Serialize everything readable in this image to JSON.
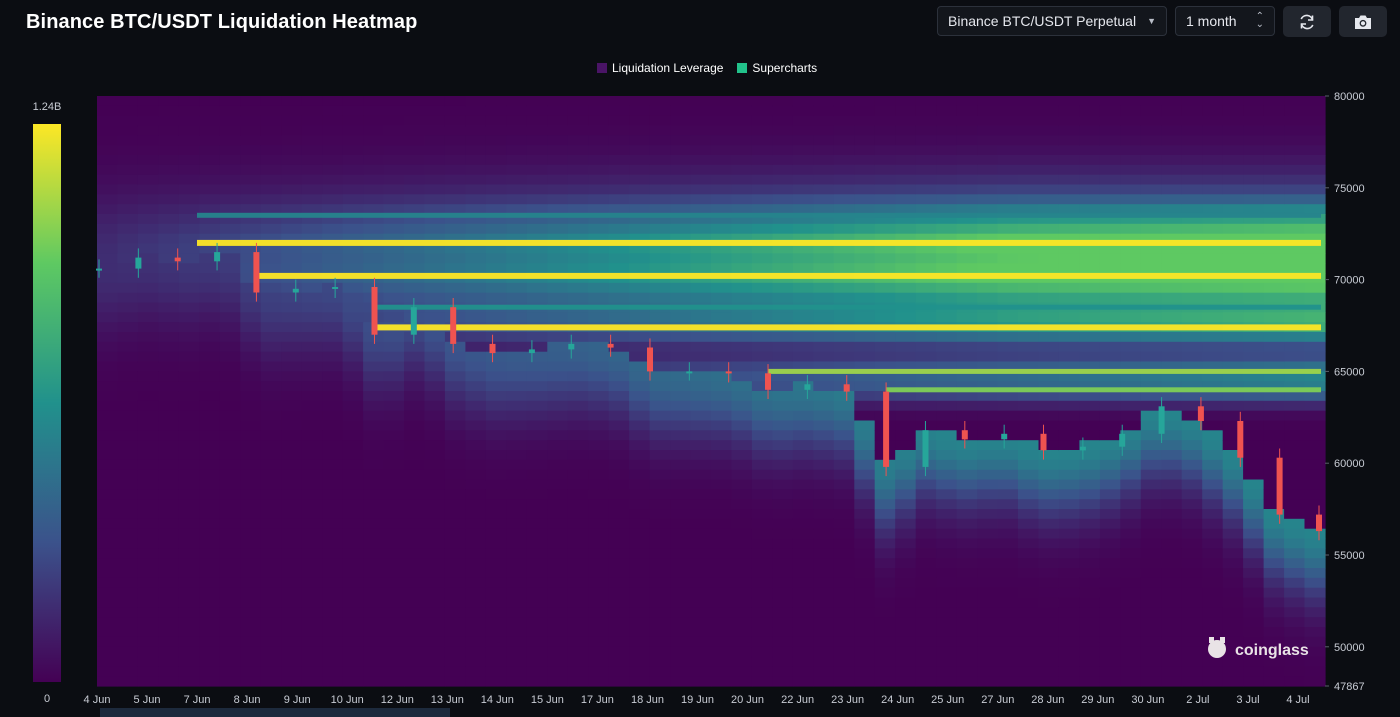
{
  "header": {
    "title": "Binance BTC/USDT Liquidation Heatmap",
    "market_select": "Binance BTC/USDT Perpetual",
    "range_select": "1 month",
    "refresh_icon": "refresh-icon",
    "camera_icon": "camera-icon"
  },
  "colors": {
    "background": "#0b0d12",
    "heat_low": "#440154",
    "heat_mid": "#21918c",
    "heat_high": "#fde725",
    "candle_up": "#26a69a",
    "candle_down": "#ef5350"
  },
  "watermark": "coinglass",
  "chart_data": {
    "type": "heatmap",
    "title": "Binance BTC/USDT Liquidation Heatmap",
    "legend": [
      {
        "name": "Liquidation Leverage",
        "color": "#4a1466"
      },
      {
        "name": "Supercharts",
        "color": "#22c28b"
      }
    ],
    "legend_position": "top-center",
    "colorbar": {
      "max_label": "1.24B",
      "min_label": "0"
    },
    "y_axis": {
      "range": [
        47867,
        80000
      ],
      "ticks": [
        "80000",
        "75000",
        "70000",
        "65000",
        "60000",
        "55000",
        "50000",
        "47867"
      ]
    },
    "x_axis": {
      "ticks": [
        "4 Jun",
        "5 Jun",
        "7 Jun",
        "8 Jun",
        "9 Jun",
        "10 Jun",
        "12 Jun",
        "13 Jun",
        "14 Jun",
        "15 Jun",
        "17 Jun",
        "18 Jun",
        "19 Jun",
        "20 Jun",
        "22 Jun",
        "23 Jun",
        "24 Jun",
        "25 Jun",
        "27 Jun",
        "28 Jun",
        "29 Jun",
        "30 Jun",
        "2 Jul",
        "3 Jul",
        "4 Jul"
      ]
    },
    "liquidation_bands": [
      {
        "price": 72000,
        "intensity": 1.0
      },
      {
        "price": 70200,
        "intensity": 1.0
      },
      {
        "price": 67400,
        "intensity": 1.0
      },
      {
        "price": 65000,
        "intensity": 0.85
      },
      {
        "price": 64000,
        "intensity": 0.8
      },
      {
        "price": 73500,
        "intensity": 0.45
      },
      {
        "price": 68500,
        "intensity": 0.5
      }
    ],
    "price_series": [
      {
        "date": "4 Jun",
        "price": 70600
      },
      {
        "date": "5 Jun",
        "price": 71200
      },
      {
        "date": "6 Jun",
        "price": 71000
      },
      {
        "date": "7 Jun",
        "price": 71500
      },
      {
        "date": "8 Jun",
        "price": 69300
      },
      {
        "date": "9 Jun",
        "price": 69500
      },
      {
        "date": "10 Jun",
        "price": 69600
      },
      {
        "date": "11 Jun",
        "price": 67000
      },
      {
        "date": "12 Jun",
        "price": 68500
      },
      {
        "date": "13 Jun",
        "price": 66500
      },
      {
        "date": "14 Jun",
        "price": 66000
      },
      {
        "date": "15 Jun",
        "price": 66200
      },
      {
        "date": "16 Jun",
        "price": 66500
      },
      {
        "date": "17 Jun",
        "price": 66300
      },
      {
        "date": "18 Jun",
        "price": 65000
      },
      {
        "date": "19 Jun",
        "price": 65000
      },
      {
        "date": "20 Jun",
        "price": 64900
      },
      {
        "date": "21 Jun",
        "price": 64000
      },
      {
        "date": "22 Jun",
        "price": 64300
      },
      {
        "date": "23 Jun",
        "price": 63900
      },
      {
        "date": "24 Jun",
        "price": 59800
      },
      {
        "date": "25 Jun",
        "price": 61800
      },
      {
        "date": "26 Jun",
        "price": 61300
      },
      {
        "date": "27 Jun",
        "price": 61600
      },
      {
        "date": "28 Jun",
        "price": 60700
      },
      {
        "date": "29 Jun",
        "price": 60900
      },
      {
        "date": "30 Jun",
        "price": 61600
      },
      {
        "date": "1 Jul",
        "price": 63100
      },
      {
        "date": "2 Jul",
        "price": 62300
      },
      {
        "date": "3 Jul",
        "price": 60300
      },
      {
        "date": "4 Jul",
        "price": 57200
      },
      {
        "date": "5 Jul",
        "price": 56300
      }
    ]
  }
}
